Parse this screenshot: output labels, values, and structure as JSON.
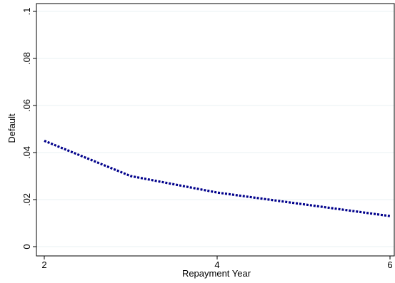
{
  "chart_data": {
    "type": "line",
    "title": "",
    "xlabel": "Repayment Year",
    "ylabel": "Default",
    "x": [
      2,
      3,
      4,
      5,
      6
    ],
    "series": [
      {
        "values": [
          0.045,
          0.03,
          0.023,
          0.018,
          0.013
        ],
        "color": "#00008b",
        "style": "dotted"
      }
    ],
    "xlim": [
      2,
      6
    ],
    "ylim": [
      0,
      0.1
    ],
    "xticks": [
      2,
      4,
      6
    ],
    "xtick_labels": [
      "2",
      "4",
      "6"
    ],
    "yticks": [
      0,
      0.02,
      0.04,
      0.06,
      0.08,
      0.1
    ],
    "ytick_labels": [
      "0",
      ".02",
      ".04",
      ".06",
      ".08",
      ".1"
    ],
    "grid": true,
    "grid_color": "#eaf2f3"
  }
}
